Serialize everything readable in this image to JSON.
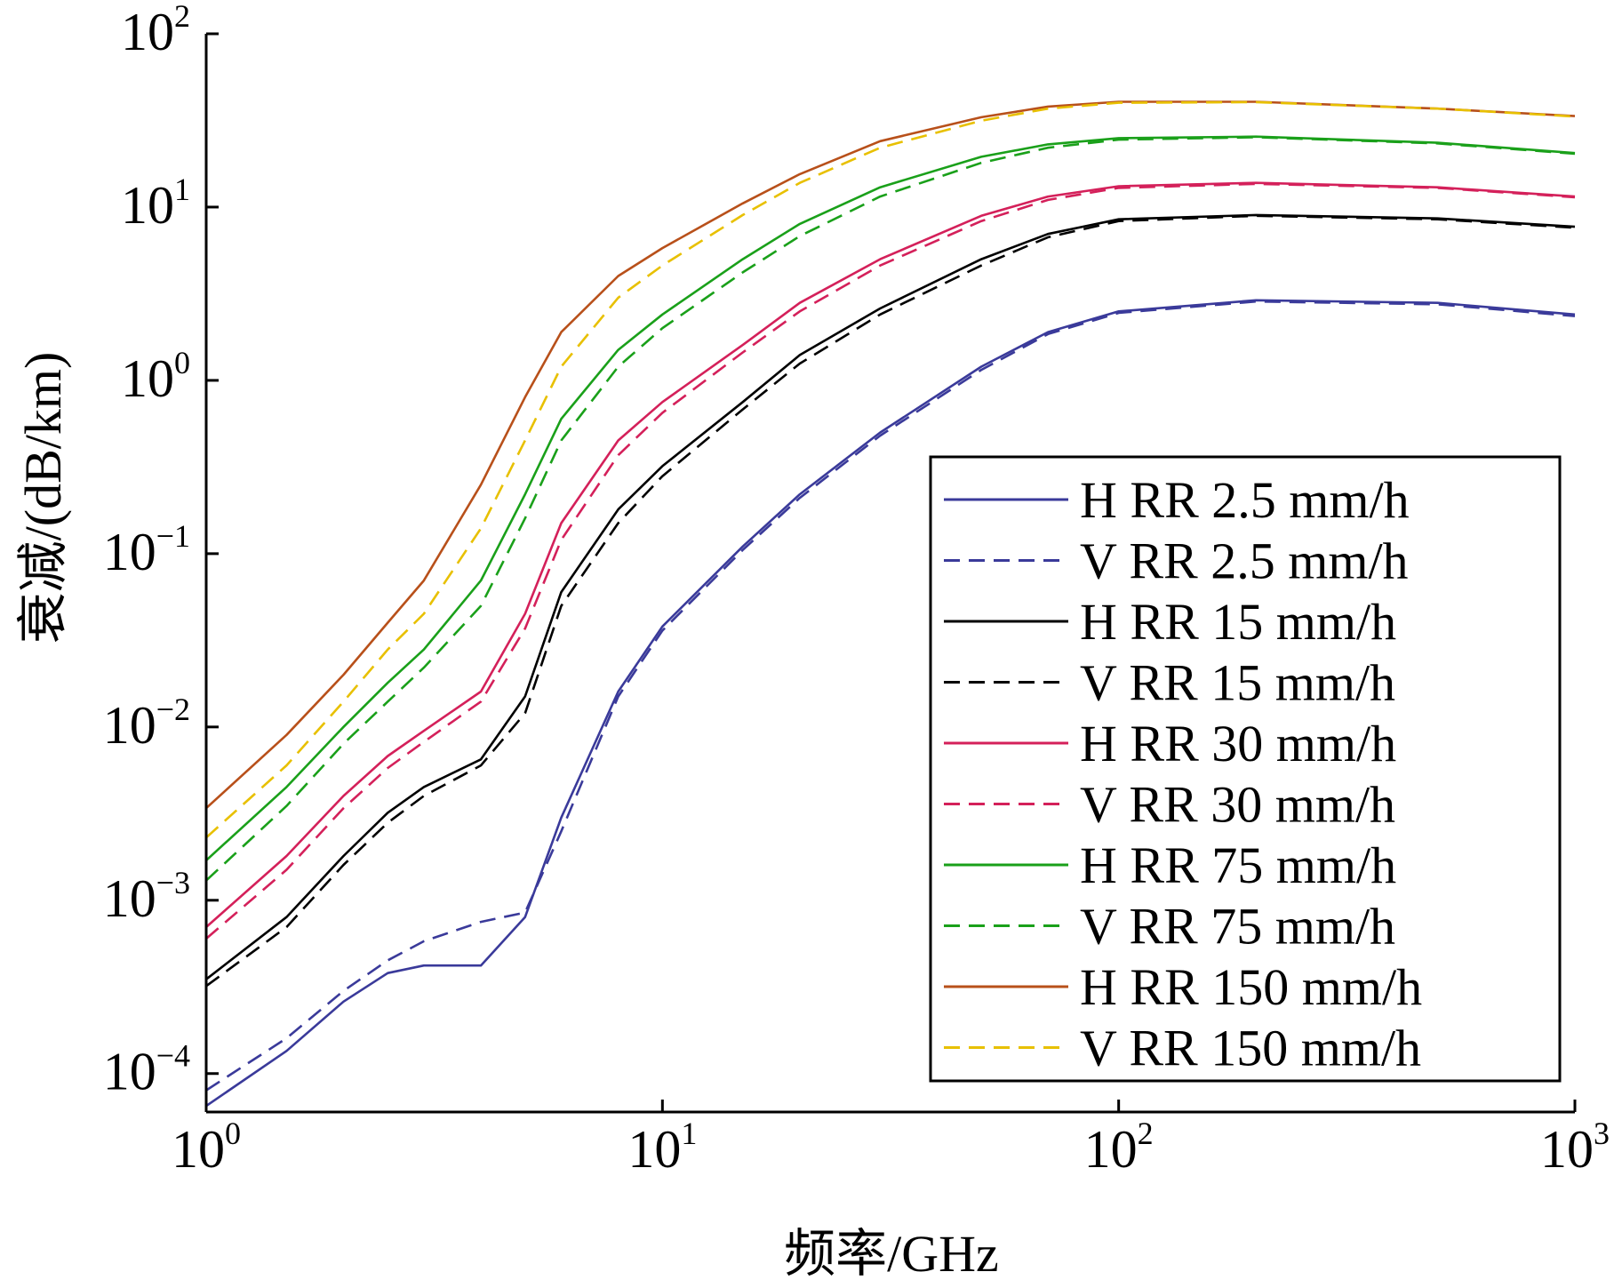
{
  "chart_data": {
    "type": "line",
    "xlabel": "频率/GHz",
    "ylabel": "衰减/(dB/km)",
    "xscale": "log",
    "yscale": "log",
    "xlim": [
      1,
      1000
    ],
    "ylim": [
      6e-05,
      100
    ],
    "x_ticks": [
      {
        "value": 1,
        "base": "10",
        "exp": "0"
      },
      {
        "value": 10,
        "base": "10",
        "exp": "1"
      },
      {
        "value": 100,
        "base": "10",
        "exp": "2"
      },
      {
        "value": 1000,
        "base": "10",
        "exp": "3"
      }
    ],
    "y_ticks": [
      {
        "value": 0.0001,
        "base": "10",
        "exp": "−4"
      },
      {
        "value": 0.001,
        "base": "10",
        "exp": "−3"
      },
      {
        "value": 0.01,
        "base": "10",
        "exp": "−2"
      },
      {
        "value": 0.1,
        "base": "10",
        "exp": "−1"
      },
      {
        "value": 1,
        "base": "10",
        "exp": "0"
      },
      {
        "value": 10,
        "base": "10",
        "exp": "1"
      },
      {
        "value": 100,
        "base": "10",
        "exp": "2"
      }
    ],
    "grid": false,
    "legend_position": "bottom-right",
    "x": [
      1,
      1.5,
      2,
      2.5,
      3,
      4,
      5,
      6,
      8,
      10,
      15,
      20,
      30,
      50,
      70,
      100,
      200,
      500,
      1000
    ],
    "series": [
      {
        "name": "H RR 2.5 mm/h",
        "color": "#3a3a9a",
        "dash": "solid",
        "values": [
          6.5e-05,
          0.000135,
          0.00026,
          0.00038,
          0.00042,
          0.00042,
          0.0008,
          0.003,
          0.016,
          0.038,
          0.11,
          0.22,
          0.5,
          1.2,
          1.9,
          2.5,
          2.9,
          2.8,
          2.4
        ]
      },
      {
        "name": "V RR 2.5 mm/h",
        "color": "#3a3a9a",
        "dash": "dashed",
        "values": [
          8e-05,
          0.00016,
          0.0003,
          0.00045,
          0.00058,
          0.00075,
          0.00085,
          0.0025,
          0.015,
          0.036,
          0.105,
          0.21,
          0.48,
          1.15,
          1.85,
          2.45,
          2.85,
          2.75,
          2.35
        ]
      },
      {
        "name": "H RR 15 mm/h",
        "color": "#000000",
        "dash": "solid",
        "values": [
          0.00035,
          0.0008,
          0.0018,
          0.0032,
          0.0045,
          0.0065,
          0.015,
          0.06,
          0.18,
          0.32,
          0.75,
          1.4,
          2.6,
          5.0,
          7.0,
          8.5,
          9.0,
          8.6,
          7.7
        ]
      },
      {
        "name": "V RR 15 mm/h",
        "color": "#000000",
        "dash": "dashed",
        "values": [
          0.00032,
          0.0007,
          0.0016,
          0.0028,
          0.004,
          0.006,
          0.012,
          0.05,
          0.15,
          0.28,
          0.68,
          1.25,
          2.4,
          4.6,
          6.7,
          8.3,
          8.9,
          8.5,
          7.6
        ]
      },
      {
        "name": "H RR 30 mm/h",
        "color": "#d4205a",
        "dash": "solid",
        "values": [
          0.0007,
          0.0018,
          0.004,
          0.0068,
          0.0095,
          0.016,
          0.045,
          0.15,
          0.45,
          0.75,
          1.6,
          2.8,
          5.0,
          8.9,
          11.5,
          13.2,
          13.8,
          13.0,
          11.5
        ]
      },
      {
        "name": "V RR 30 mm/h",
        "color": "#d4205a",
        "dash": "dashed",
        "values": [
          0.0006,
          0.0015,
          0.0034,
          0.0058,
          0.0082,
          0.014,
          0.037,
          0.12,
          0.37,
          0.65,
          1.45,
          2.5,
          4.6,
          8.3,
          11.0,
          12.9,
          13.6,
          12.9,
          11.4
        ]
      },
      {
        "name": "H RR 75 mm/h",
        "color": "#1aa01a",
        "dash": "solid",
        "values": [
          0.0017,
          0.0045,
          0.01,
          0.018,
          0.028,
          0.07,
          0.22,
          0.6,
          1.5,
          2.4,
          5.0,
          8.0,
          13.0,
          19.5,
          23.0,
          25.0,
          25.5,
          23.5,
          20.5
        ]
      },
      {
        "name": "V RR 75 mm/h",
        "color": "#1aa01a",
        "dash": "dashed",
        "values": [
          0.0013,
          0.0035,
          0.008,
          0.014,
          0.022,
          0.05,
          0.16,
          0.45,
          1.2,
          2.0,
          4.2,
          6.8,
          11.5,
          18.0,
          22.0,
          24.5,
          25.3,
          23.3,
          20.3
        ]
      },
      {
        "name": "H RR 150 mm/h",
        "color": "#b8501a",
        "dash": "solid",
        "values": [
          0.0034,
          0.009,
          0.02,
          0.04,
          0.07,
          0.25,
          0.8,
          1.9,
          4.0,
          5.8,
          10.5,
          15.5,
          24.0,
          33.0,
          38.0,
          40.5,
          40.5,
          37.0,
          33.5
        ]
      },
      {
        "name": "V RR 150 mm/h",
        "color": "#e8c000",
        "dash": "dashed",
        "values": [
          0.0023,
          0.006,
          0.014,
          0.028,
          0.045,
          0.14,
          0.45,
          1.2,
          3.0,
          4.6,
          9.0,
          13.8,
          22.0,
          31.5,
          37.0,
          40.0,
          40.3,
          37.0,
          33.3
        ]
      }
    ]
  }
}
